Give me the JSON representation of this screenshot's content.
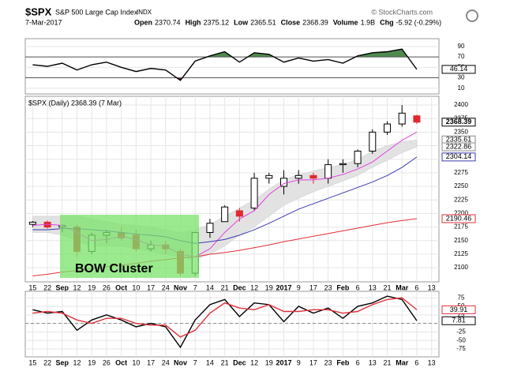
{
  "header": {
    "symbol": "$SPX",
    "name": "S&P 500 Large Cap Index",
    "exchange": "INDX",
    "date": "7-Mar-2017",
    "watermark": "© StockCharts.com",
    "quote": [
      {
        "label": "Open",
        "value": 2370.74
      },
      {
        "label": "High",
        "value": 2375.12
      },
      {
        "label": "Low",
        "value": 2365.51
      },
      {
        "label": "Close",
        "value": 2368.39
      },
      {
        "label": "Volume",
        "value": "1.9B"
      },
      {
        "label": "Chg",
        "value": "-5.92 (-0.29%)"
      }
    ]
  },
  "chart_data": [
    {
      "type": "line",
      "ylim": [
        -1,
        105
      ],
      "yticks": [
        90,
        70,
        50,
        30,
        10
      ],
      "upper_level": 70,
      "lower_level": 30,
      "upper_color": "#4f8a4f",
      "lower_color": "#7a2a3a",
      "series": [
        {
          "color": "#000000",
          "values": [
            55,
            52,
            58,
            45,
            55,
            60,
            50,
            42,
            48,
            45,
            25,
            62,
            72,
            80,
            60,
            78,
            75,
            60,
            68,
            62,
            65,
            58,
            72,
            78,
            80,
            85,
            46.14,
            null
          ]
        }
      ],
      "last_labels": [
        {
          "value": 46.14,
          "color": "#000000"
        }
      ]
    },
    {
      "type": "candlestick",
      "label": "$SPX (Daily) 2368.39 (7 Mar)",
      "annotation": "BOW Cluster",
      "categories": [
        "15",
        "22",
        "Sep",
        "12",
        "19",
        "26",
        "Oct",
        "10",
        "17",
        "24",
        "Nov",
        "7",
        "14",
        "21",
        "Dec",
        "12",
        "19",
        "2017",
        "9",
        "17",
        "23",
        "Feb",
        "6",
        "13",
        "21",
        "Mar",
        "6",
        "13"
      ],
      "ylim": [
        2074,
        2416
      ],
      "yticks": [
        2400,
        2375,
        2350,
        2325,
        2300,
        2275,
        2250,
        2225,
        2200,
        2175,
        2150,
        2125,
        2100
      ],
      "grid": true,
      "open": [
        2180,
        2184,
        2175,
        2175,
        2130,
        2160,
        2165,
        2160,
        2135,
        2142,
        2130,
        2090,
        2165,
        2185,
        2205,
        2210,
        2265,
        2250,
        2265,
        2270,
        2265,
        2290,
        2292,
        2315,
        2350,
        2365,
        2380,
        null
      ],
      "high": [
        2186,
        2187,
        2180,
        2180,
        2165,
        2170,
        2175,
        2170,
        2150,
        2150,
        2135,
        2165,
        2190,
        2215,
        2210,
        2275,
        2275,
        2280,
        2280,
        2275,
        2300,
        2300,
        2318,
        2355,
        2370,
        2400,
        2382,
        null
      ],
      "low": [
        2175,
        2172,
        2165,
        2120,
        2125,
        2145,
        2150,
        2130,
        2130,
        2125,
        2085,
        2085,
        2155,
        2185,
        2185,
        2205,
        2255,
        2235,
        2255,
        2255,
        2255,
        2275,
        2285,
        2310,
        2345,
        2360,
        2365,
        null
      ],
      "close": [
        2184,
        2175,
        2178,
        2130,
        2160,
        2165,
        2155,
        2135,
        2142,
        2135,
        2090,
        2165,
        2182,
        2212,
        2195,
        2265,
        2270,
        2265,
        2270,
        2265,
        2290,
        2292,
        2315,
        2350,
        2365,
        2385,
        2368.39,
        null
      ],
      "up_color": "#000000",
      "down_color": "#e0282e",
      "band": {
        "color": "#e2e2e2",
        "upper": [
          2195,
          2195,
          2195,
          2195,
          2190,
          2185,
          2180,
          2178,
          2175,
          2170,
          2165,
          2170,
          2180,
          2195,
          2210,
          2225,
          2245,
          2262,
          2272,
          2278,
          2285,
          2290,
          2300,
          2315,
          2325,
          2332,
          2335.61,
          null
        ],
        "lower": [
          2165,
          2165,
          2160,
          2150,
          2140,
          2140,
          2140,
          2135,
          2130,
          2125,
          2120,
          2115,
          2125,
          2140,
          2160,
          2175,
          2195,
          2215,
          2228,
          2240,
          2250,
          2260,
          2270,
          2285,
          2298,
          2312,
          2322.86,
          null
        ]
      },
      "series": [
        {
          "color": "#e040e0",
          "values": [
            2178,
            2180,
            2178,
            2165,
            2150,
            2152,
            2158,
            2152,
            2142,
            2140,
            2125,
            2120,
            2135,
            2165,
            2190,
            2205,
            2235,
            2255,
            2262,
            2262,
            2265,
            2272,
            2282,
            2295,
            2315,
            2335,
            2350,
            null
          ]
        },
        {
          "color": "#3a3ab0",
          "values": [
            2170,
            2170,
            2172,
            2172,
            2170,
            2168,
            2165,
            2162,
            2160,
            2157,
            2150,
            2145,
            2148,
            2152,
            2160,
            2170,
            2182,
            2195,
            2208,
            2218,
            2228,
            2238,
            2248,
            2258,
            2270,
            2285,
            2304.14,
            null
          ]
        },
        {
          "color": "#e0303a",
          "values": [
            2085,
            2088,
            2092,
            2095,
            2098,
            2102,
            2105,
            2108,
            2112,
            2115,
            2118,
            2120,
            2125,
            2128,
            2132,
            2137,
            2142,
            2148,
            2153,
            2158,
            2163,
            2168,
            2173,
            2178,
            2183,
            2187,
            2190.46,
            null
          ]
        }
      ],
      "last_labels": [
        {
          "value": 2368.39,
          "color": "#000000"
        },
        {
          "value": 2335.61,
          "color": "#888888"
        },
        {
          "value": 2322.86,
          "color": "#888888"
        },
        {
          "value": 2304.14,
          "color": "#3a3ab0"
        },
        {
          "value": 2190.46,
          "color": "#e0303a"
        }
      ]
    },
    {
      "type": "line",
      "categories": [
        "15",
        "22",
        "Sep",
        "12",
        "19",
        "26",
        "Oct",
        "10",
        "17",
        "24",
        "Nov",
        "7",
        "14",
        "21",
        "Dec",
        "12",
        "19",
        "2017",
        "9",
        "17",
        "23",
        "Feb",
        "6",
        "13",
        "21",
        "Mar",
        "6",
        "13"
      ],
      "ylim": [
        -98,
        94
      ],
      "yticks": [
        75,
        50,
        25,
        0,
        -25,
        -50,
        -75
      ],
      "zero_line": 0,
      "series": [
        {
          "color": "#000000",
          "values": [
            40,
            30,
            35,
            -20,
            10,
            25,
            10,
            -10,
            0,
            -10,
            -70,
            10,
            55,
            70,
            20,
            60,
            55,
            5,
            50,
            30,
            45,
            15,
            50,
            60,
            80,
            70,
            7.81,
            null
          ]
        },
        {
          "color": "#e0303a",
          "values": [
            30,
            35,
            30,
            10,
            0,
            15,
            15,
            0,
            -5,
            -5,
            -40,
            -20,
            30,
            60,
            45,
            40,
            55,
            35,
            35,
            40,
            40,
            30,
            35,
            55,
            70,
            75,
            39.91,
            null
          ]
        }
      ],
      "last_labels": [
        {
          "value": 39.91,
          "color": "#e0303a"
        },
        {
          "value": 7.81,
          "color": "#000000"
        }
      ]
    }
  ]
}
